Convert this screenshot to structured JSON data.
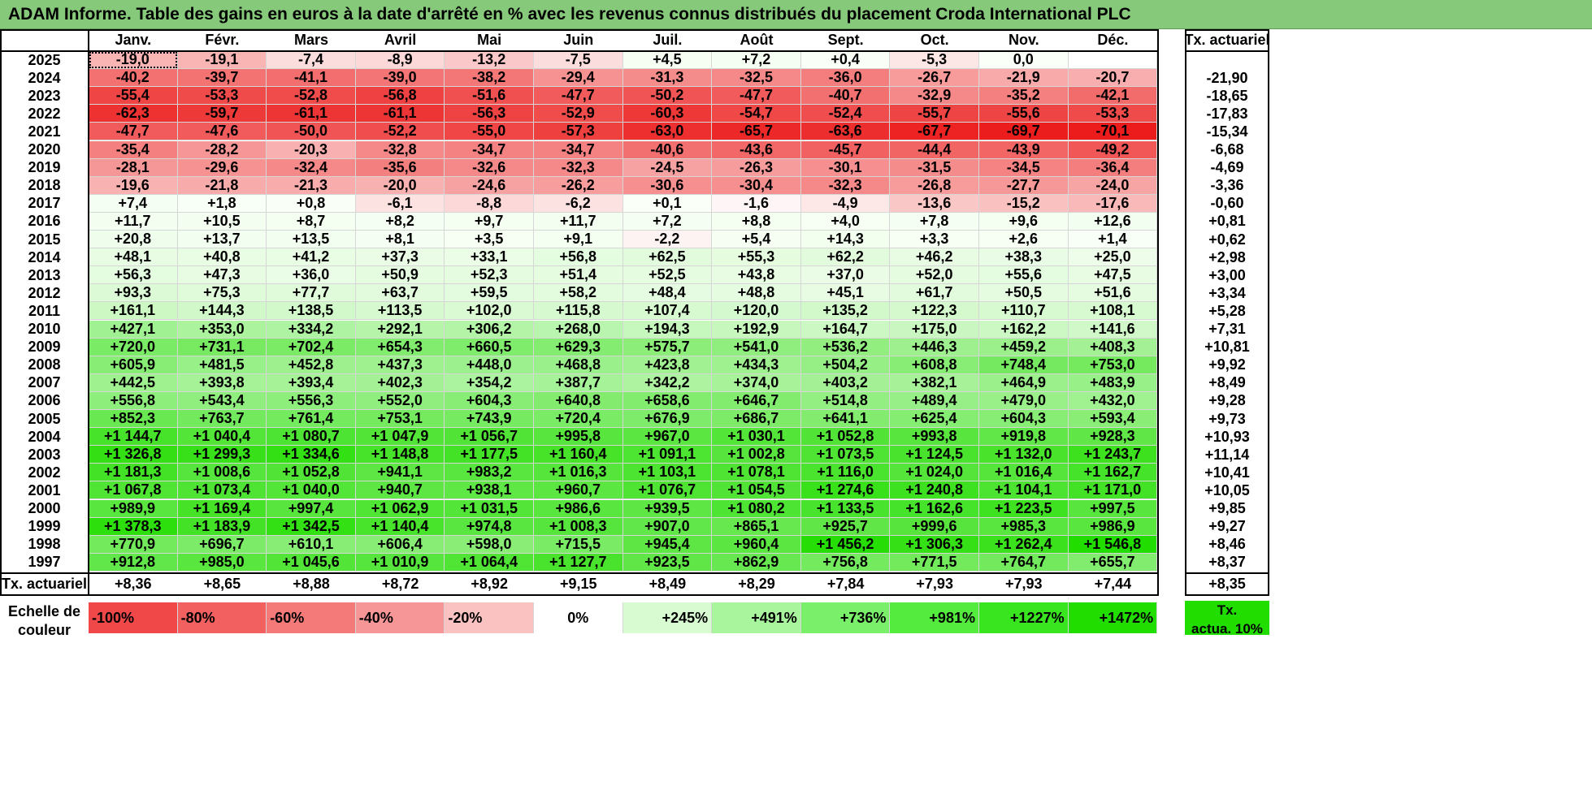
{
  "title": "ADAM Informe. Table des gains en euros à la date d'arrêté en % avec les revenus connus distribués du placement Croda International PLC",
  "months": [
    "Janv.",
    "Févr.",
    "Mars",
    "Avril",
    "Mai",
    "Juin",
    "Juil.",
    "Août",
    "Sept.",
    "Oct.",
    "Nov.",
    "Déc."
  ],
  "return_header": "Tx. actuariel",
  "rows": [
    {
      "year": "2025",
      "values": [
        "-19,0",
        "-19,1",
        "-7,4",
        "-8,9",
        "-13,2",
        "-7,5",
        "+4,5",
        "+7,2",
        "+0,4",
        "-5,3",
        "0,0",
        ""
      ],
      "rate": ""
    },
    {
      "year": "2024",
      "values": [
        "-40,2",
        "-39,7",
        "-41,1",
        "-39,0",
        "-38,2",
        "-29,4",
        "-31,3",
        "-32,5",
        "-36,0",
        "-26,7",
        "-21,9",
        "-20,7"
      ],
      "rate": "-21,90"
    },
    {
      "year": "2023",
      "values": [
        "-55,4",
        "-53,3",
        "-52,8",
        "-56,8",
        "-51,6",
        "-47,7",
        "-50,2",
        "-47,7",
        "-40,7",
        "-32,9",
        "-35,2",
        "-42,1"
      ],
      "rate": "-18,65"
    },
    {
      "year": "2022",
      "values": [
        "-62,3",
        "-59,7",
        "-61,1",
        "-61,1",
        "-56,3",
        "-52,9",
        "-60,3",
        "-54,7",
        "-52,4",
        "-55,7",
        "-55,6",
        "-53,3"
      ],
      "rate": "-17,83"
    },
    {
      "year": "2021",
      "values": [
        "-47,7",
        "-47,6",
        "-50,0",
        "-52,2",
        "-55,0",
        "-57,3",
        "-63,0",
        "-65,7",
        "-63,6",
        "-67,7",
        "-69,7",
        "-70,1"
      ],
      "rate": "-15,34"
    },
    {
      "year": "2020",
      "values": [
        "-35,4",
        "-28,2",
        "-20,3",
        "-32,8",
        "-34,7",
        "-34,7",
        "-40,6",
        "-43,6",
        "-45,7",
        "-44,4",
        "-43,9",
        "-49,2"
      ],
      "rate": "-6,68"
    },
    {
      "year": "2019",
      "values": [
        "-28,1",
        "-29,6",
        "-32,4",
        "-35,6",
        "-32,6",
        "-32,3",
        "-24,5",
        "-26,3",
        "-30,1",
        "-31,5",
        "-34,5",
        "-36,4"
      ],
      "rate": "-4,69"
    },
    {
      "year": "2018",
      "values": [
        "-19,6",
        "-21,8",
        "-21,3",
        "-20,0",
        "-24,6",
        "-26,2",
        "-30,6",
        "-30,4",
        "-32,3",
        "-26,8",
        "-27,7",
        "-24,0"
      ],
      "rate": "-3,36"
    },
    {
      "year": "2017",
      "values": [
        "+7,4",
        "+1,8",
        "+0,8",
        "-6,1",
        "-8,8",
        "-6,2",
        "+0,1",
        "-1,6",
        "-4,9",
        "-13,6",
        "-15,2",
        "-17,6"
      ],
      "rate": "-0,60"
    },
    {
      "year": "2016",
      "values": [
        "+11,7",
        "+10,5",
        "+8,7",
        "+8,2",
        "+9,7",
        "+11,7",
        "+7,2",
        "+8,8",
        "+4,0",
        "+7,8",
        "+9,6",
        "+12,6"
      ],
      "rate": "+0,81"
    },
    {
      "year": "2015",
      "values": [
        "+20,8",
        "+13,7",
        "+13,5",
        "+8,1",
        "+3,5",
        "+9,1",
        "-2,2",
        "+5,4",
        "+14,3",
        "+3,3",
        "+2,6",
        "+1,4"
      ],
      "rate": "+0,62"
    },
    {
      "year": "2014",
      "values": [
        "+48,1",
        "+40,8",
        "+41,2",
        "+37,3",
        "+33,1",
        "+56,8",
        "+62,5",
        "+55,3",
        "+62,2",
        "+46,2",
        "+38,3",
        "+25,0"
      ],
      "rate": "+2,98"
    },
    {
      "year": "2013",
      "values": [
        "+56,3",
        "+47,3",
        "+36,0",
        "+50,9",
        "+52,3",
        "+51,4",
        "+52,5",
        "+43,8",
        "+37,0",
        "+52,0",
        "+55,6",
        "+47,5"
      ],
      "rate": "+3,00"
    },
    {
      "year": "2012",
      "values": [
        "+93,3",
        "+75,3",
        "+77,7",
        "+63,7",
        "+59,5",
        "+58,2",
        "+48,4",
        "+48,8",
        "+45,1",
        "+61,7",
        "+50,5",
        "+51,6"
      ],
      "rate": "+3,34"
    },
    {
      "year": "2011",
      "values": [
        "+161,1",
        "+144,3",
        "+138,5",
        "+113,5",
        "+102,0",
        "+115,8",
        "+107,4",
        "+120,0",
        "+135,2",
        "+122,3",
        "+110,7",
        "+108,1"
      ],
      "rate": "+5,28"
    },
    {
      "year": "2010",
      "values": [
        "+427,1",
        "+353,0",
        "+334,2",
        "+292,1",
        "+306,2",
        "+268,0",
        "+194,3",
        "+192,9",
        "+164,7",
        "+175,0",
        "+162,2",
        "+141,6"
      ],
      "rate": "+7,31"
    },
    {
      "year": "2009",
      "values": [
        "+720,0",
        "+731,1",
        "+702,4",
        "+654,3",
        "+660,5",
        "+629,3",
        "+575,7",
        "+541,0",
        "+536,2",
        "+446,3",
        "+459,2",
        "+408,3"
      ],
      "rate": "+10,81"
    },
    {
      "year": "2008",
      "values": [
        "+605,9",
        "+481,5",
        "+452,8",
        "+437,3",
        "+448,0",
        "+468,8",
        "+423,8",
        "+434,3",
        "+504,2",
        "+608,8",
        "+748,4",
        "+753,0"
      ],
      "rate": "+9,92"
    },
    {
      "year": "2007",
      "values": [
        "+442,5",
        "+393,8",
        "+393,4",
        "+402,3",
        "+354,2",
        "+387,7",
        "+342,2",
        "+374,0",
        "+403,2",
        "+382,1",
        "+464,9",
        "+483,9"
      ],
      "rate": "+8,49"
    },
    {
      "year": "2006",
      "values": [
        "+556,8",
        "+543,4",
        "+556,3",
        "+552,0",
        "+604,3",
        "+640,8",
        "+658,6",
        "+646,7",
        "+514,8",
        "+489,4",
        "+479,0",
        "+432,0"
      ],
      "rate": "+9,28"
    },
    {
      "year": "2005",
      "values": [
        "+852,3",
        "+763,7",
        "+761,4",
        "+753,1",
        "+743,9",
        "+720,4",
        "+676,9",
        "+686,7",
        "+641,1",
        "+625,4",
        "+604,3",
        "+593,4"
      ],
      "rate": "+9,73"
    },
    {
      "year": "2004",
      "values": [
        "+1 144,7",
        "+1 040,4",
        "+1 080,7",
        "+1 047,9",
        "+1 056,7",
        "+995,8",
        "+967,0",
        "+1 030,1",
        "+1 052,8",
        "+993,8",
        "+919,8",
        "+928,3"
      ],
      "rate": "+10,93"
    },
    {
      "year": "2003",
      "values": [
        "+1 326,8",
        "+1 299,3",
        "+1 334,6",
        "+1 148,8",
        "+1 177,5",
        "+1 160,4",
        "+1 091,1",
        "+1 002,8",
        "+1 073,5",
        "+1 124,5",
        "+1 132,0",
        "+1 243,7"
      ],
      "rate": "+11,14"
    },
    {
      "year": "2002",
      "values": [
        "+1 181,3",
        "+1 008,6",
        "+1 052,8",
        "+941,1",
        "+983,2",
        "+1 016,3",
        "+1 103,1",
        "+1 078,1",
        "+1 116,0",
        "+1 024,0",
        "+1 016,4",
        "+1 162,7"
      ],
      "rate": "+10,41"
    },
    {
      "year": "2001",
      "values": [
        "+1 067,8",
        "+1 073,4",
        "+1 040,0",
        "+940,7",
        "+938,1",
        "+960,7",
        "+1 076,7",
        "+1 054,5",
        "+1 274,6",
        "+1 240,8",
        "+1 104,1",
        "+1 171,0"
      ],
      "rate": "+10,05"
    },
    {
      "year": "2000",
      "values": [
        "+989,9",
        "+1 169,4",
        "+997,4",
        "+1 062,9",
        "+1 031,5",
        "+986,6",
        "+939,5",
        "+1 080,2",
        "+1 133,5",
        "+1 162,6",
        "+1 223,5",
        "+997,5"
      ],
      "rate": "+9,85"
    },
    {
      "year": "1999",
      "values": [
        "+1 378,3",
        "+1 183,9",
        "+1 342,5",
        "+1 140,4",
        "+974,8",
        "+1 008,3",
        "+907,0",
        "+865,1",
        "+925,7",
        "+999,6",
        "+985,3",
        "+986,9"
      ],
      "rate": "+9,27"
    },
    {
      "year": "1998",
      "values": [
        "+770,9",
        "+696,7",
        "+610,1",
        "+606,4",
        "+598,0",
        "+715,5",
        "+945,4",
        "+960,4",
        "+1 456,2",
        "+1 306,3",
        "+1 262,4",
        "+1 546,8"
      ],
      "rate": "+8,46"
    },
    {
      "year": "1997",
      "values": [
        "+912,8",
        "+985,0",
        "+1 045,6",
        "+1 010,9",
        "+1 064,4",
        "+1 127,7",
        "+923,5",
        "+862,9",
        "+756,8",
        "+771,5",
        "+764,7",
        "+655,7"
      ],
      "rate": "+8,37"
    }
  ],
  "footer": {
    "label": "Tx. actuariel",
    "values": [
      "+8,36",
      "+8,65",
      "+8,88",
      "+8,72",
      "+8,92",
      "+9,15",
      "+8,49",
      "+8,29",
      "+7,84",
      "+7,93",
      "+7,93",
      "+7,44"
    ],
    "rate": "+8,35"
  },
  "legend": {
    "label_line1": "Echelle de",
    "label_line2": "couleur",
    "steps": [
      {
        "text": "-100%",
        "align": "left",
        "color": "#f04848"
      },
      {
        "text": "-80%",
        "align": "left",
        "color": "#f26060"
      },
      {
        "text": "-60%",
        "align": "left",
        "color": "#f47a7a"
      },
      {
        "text": "-40%",
        "align": "left",
        "color": "#f79696"
      },
      {
        "text": "-20%",
        "align": "left",
        "color": "#fbc2c2"
      },
      {
        "text": "0%",
        "align": "center",
        "color": "#ffffff"
      },
      {
        "text": "+245%",
        "align": "right",
        "color": "#d8fbd2"
      },
      {
        "text": "+491%",
        "align": "right",
        "color": "#a8f59e"
      },
      {
        "text": "+736%",
        "align": "right",
        "color": "#7af06a"
      },
      {
        "text": "+981%",
        "align": "right",
        "color": "#54eb3e"
      },
      {
        "text": "+1227%",
        "align": "right",
        "color": "#39e51e"
      },
      {
        "text": "+1472%",
        "align": "right",
        "color": "#22dd00"
      }
    ],
    "note_line1": "Tx.",
    "note_line2": "actua. 10%",
    "note_color": "#22dd00"
  },
  "colors": {
    "title_bg": "#86c97a",
    "negative_full": "#ec1c1c",
    "positive_full": "#22dd00",
    "neutral": "#ffffff",
    "selected_cell": "2025-Janv."
  }
}
